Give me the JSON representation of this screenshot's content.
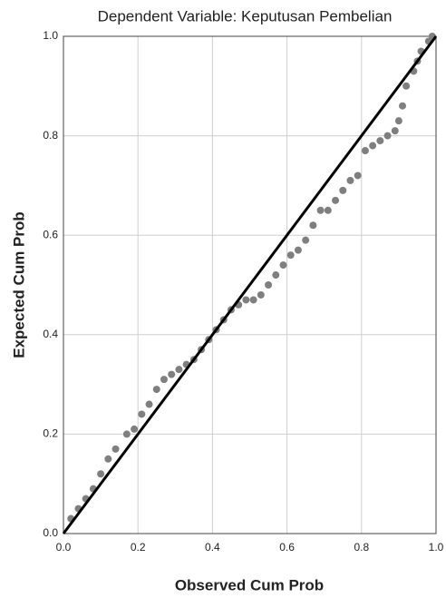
{
  "chart_data": {
    "type": "scatter",
    "title": "Dependent Variable: Keputusan Pembelian",
    "x_label": "Observed Cum Prob",
    "y_label": "Expected Cum Prob",
    "color": "#7f7f7f",
    "line_color": "#000000",
    "grid": true,
    "xlim": [
      0,
      1
    ],
    "ylim": [
      0,
      1
    ],
    "xticks": [
      {
        "value": 0,
        "label": "0.0"
      },
      0.2,
      0.4,
      0.6,
      0.8,
      {
        "value": 1,
        "label": "1.0"
      }
    ],
    "yticks": [
      {
        "value": 0,
        "label": "0.0"
      },
      0.2,
      0.4,
      0.6,
      0.8,
      {
        "value": 1,
        "label": "1.0"
      }
    ],
    "x": [
      0.02,
      0.04,
      0.06,
      0.08,
      0.1,
      0.12,
      0.14,
      0.17,
      0.19,
      0.21,
      0.23,
      0.25,
      0.27,
      0.29,
      0.31,
      0.33,
      0.35,
      0.37,
      0.39,
      0.41,
      0.43,
      0.45,
      0.47,
      0.49,
      0.51,
      0.53,
      0.55,
      0.57,
      0.59,
      0.61,
      0.63,
      0.65,
      0.67,
      0.69,
      0.71,
      0.73,
      0.75,
      0.77,
      0.79,
      0.81,
      0.83,
      0.85,
      0.87,
      0.89,
      0.9,
      0.91,
      0.92,
      0.94,
      0.95,
      0.96,
      0.98,
      0.99
    ],
    "y": [
      0.03,
      0.05,
      0.07,
      0.09,
      0.12,
      0.15,
      0.17,
      0.2,
      0.21,
      0.24,
      0.26,
      0.29,
      0.31,
      0.32,
      0.33,
      0.34,
      0.35,
      0.37,
      0.39,
      0.41,
      0.43,
      0.45,
      0.46,
      0.47,
      0.47,
      0.48,
      0.5,
      0.52,
      0.54,
      0.56,
      0.57,
      0.59,
      0.62,
      0.65,
      0.65,
      0.67,
      0.69,
      0.71,
      0.72,
      0.77,
      0.78,
      0.79,
      0.8,
      0.81,
      0.83,
      0.86,
      0.9,
      0.93,
      0.95,
      0.97,
      0.99,
      1.0
    ]
  }
}
